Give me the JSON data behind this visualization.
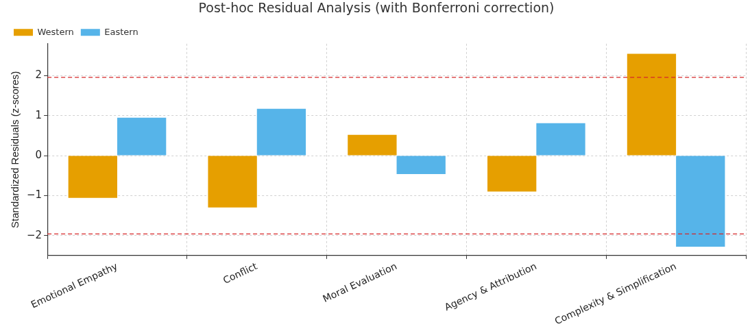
{
  "chart_data": {
    "type": "bar",
    "title": "Post-hoc Residual Analysis (with Bonferroni correction)",
    "ylabel": "Standardized Residuals (z-scores)",
    "categories": [
      "Emotional Empathy",
      "Conflict",
      "Moral Evaluation",
      "Agency & Attribution",
      "Complexity & Simplification"
    ],
    "series": [
      {
        "name": "Western",
        "color": "#e69f00",
        "values": [
          -1.06,
          -1.3,
          0.52,
          -0.9,
          2.55
        ]
      },
      {
        "name": "Eastern",
        "color": "#56b4e9",
        "values": [
          0.95,
          1.17,
          -0.46,
          0.81,
          -2.28
        ]
      }
    ],
    "ylim": [
      -2.5,
      2.8
    ],
    "yticks": [
      {
        "value": -2,
        "label": "−2"
      },
      {
        "value": -1,
        "label": "−1"
      },
      0,
      1,
      2
    ],
    "ref_lines": [
      {
        "axis": "y",
        "value": 1.96,
        "label": null,
        "color": "#d62728",
        "line_style": "dashed"
      },
      {
        "axis": "y",
        "value": -1.96,
        "label": null,
        "color": "#d62728",
        "line_style": "dashed"
      }
    ],
    "grid": true,
    "legend": "top left"
  }
}
